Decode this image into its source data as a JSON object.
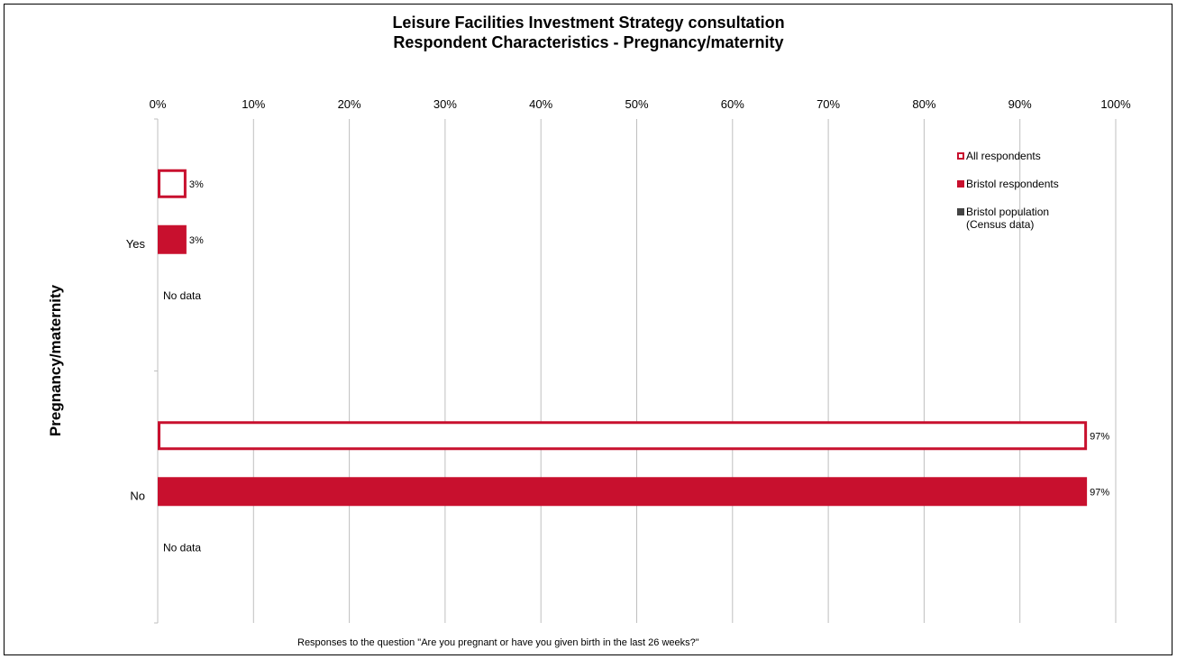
{
  "chart_data": {
    "type": "bar",
    "orientation": "horizontal",
    "title": "Leisure Facilities Investment Strategy consultation",
    "subtitle": "Respondent Characteristics - Pregnancy/maternity",
    "ylabel": "Pregnancy/maternity",
    "footnote": "Responses to the question \"Are you pregnant or have you given birth in the last 26 weeks?\"",
    "categories": [
      "Yes",
      "No"
    ],
    "xlim": [
      0,
      100
    ],
    "x_ticks": [
      "0%",
      "10%",
      "20%",
      "30%",
      "40%",
      "50%",
      "60%",
      "70%",
      "80%",
      "90%",
      "100%"
    ],
    "grid": "vertical",
    "legend_position": "top-right",
    "series": [
      {
        "name": "All respondents",
        "values": [
          3,
          97
        ],
        "value_labels": [
          "3%",
          "97%"
        ],
        "style": "outline",
        "color": "#c8102e"
      },
      {
        "name": "Bristol respondents",
        "values": [
          3,
          97
        ],
        "value_labels": [
          "3%",
          "97%"
        ],
        "style": "filled",
        "color": "#c8102e"
      },
      {
        "name": "Bristol population\n(Census data)",
        "values": [
          null,
          null
        ],
        "value_labels": [
          "No data",
          "No data"
        ],
        "style": "filled",
        "color": "#444444"
      }
    ]
  }
}
